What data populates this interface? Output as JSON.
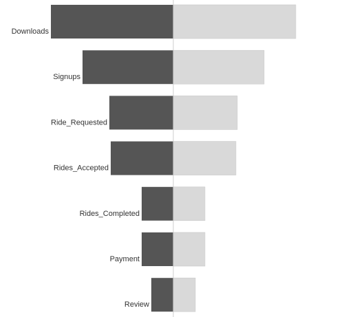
{
  "chart_data": {
    "type": "bar",
    "orientation": "horizontal",
    "layout": "funnel (mirrored around a center line)",
    "categories": [
      "Downloads",
      "Signups",
      "Ride_Requested",
      "Rides_Accepted",
      "Rides_Completed",
      "Payment",
      "Review"
    ],
    "values": [
      178,
      132,
      93,
      91,
      46,
      46,
      32
    ],
    "title": "",
    "xlabel": "",
    "ylabel": "",
    "grid": false,
    "legend": "none",
    "colors": {
      "left_bar": "#555555",
      "right_bar": "#d9d9d9",
      "right_bar_border": "#c9c9c9",
      "center_line": "#cccccc"
    }
  }
}
